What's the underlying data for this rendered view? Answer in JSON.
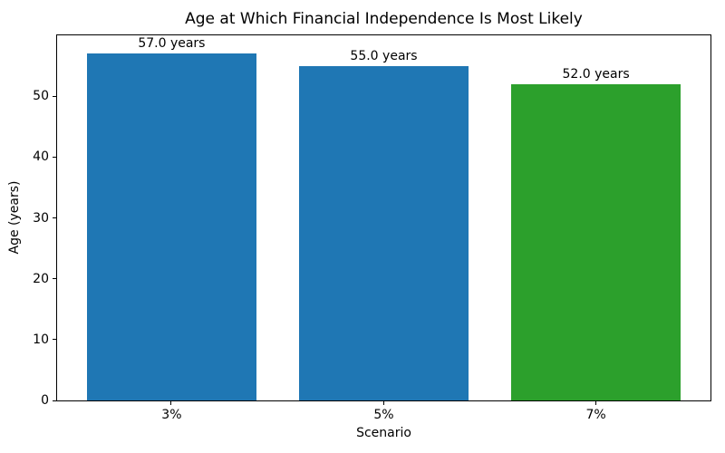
{
  "chart_data": {
    "type": "bar",
    "title": "Age at Which Financial Independence Is Most Likely",
    "xlabel": "Scenario",
    "ylabel": "Age (years)",
    "categories": [
      "3%",
      "5%",
      "7%"
    ],
    "values": [
      57.0,
      55.0,
      52.0
    ],
    "bar_labels": [
      "57.0 years",
      "55.0 years",
      "52.0 years"
    ],
    "bar_colors": [
      "#1f77b4",
      "#1f77b4",
      "#2ca02c"
    ],
    "ylim": [
      0,
      60
    ],
    "yticks": [
      0,
      10,
      20,
      30,
      40,
      50
    ],
    "grid": false,
    "legend_position": null
  }
}
